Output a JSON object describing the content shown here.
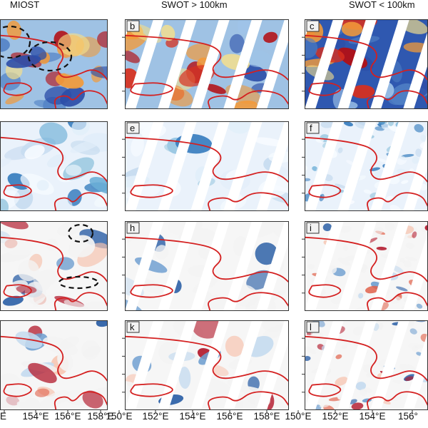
{
  "figure": {
    "column_titles": [
      "MIOST",
      "SWOT > 100km",
      "SWOT < 100km"
    ],
    "x_tick_labels": [
      [
        "E",
        "154°E",
        "156°E",
        "158°E"
      ],
      [
        "150°E",
        "152°E",
        "154°E",
        "156°E",
        "158°E"
      ],
      [
        "150°E",
        "152°E",
        "154°E",
        "156°"
      ]
    ],
    "panel_letters": [
      [
        "",
        "b",
        "c"
      ],
      [
        "",
        "e",
        "f"
      ],
      [
        "",
        "h",
        "i"
      ],
      [
        "",
        "k",
        "l"
      ]
    ],
    "colors": {
      "contour": "#d42020",
      "dashed_ellipse": "#111111",
      "warm": "#b2182b",
      "cool": "#2166ac",
      "neutral": "#f7f7f7"
    },
    "rows": [
      {
        "style": "intensity",
        "cells": [
          "strong",
          "strong",
          "strong"
        ]
      },
      {
        "style": "blue-only",
        "cells": [
          "weak",
          "weak",
          "noisy"
        ]
      },
      {
        "style": "diverging",
        "cells": [
          "smooth",
          "smooth",
          "noisy"
        ]
      },
      {
        "style": "diverging",
        "cells": [
          "smooth",
          "smooth",
          "noisy"
        ]
      }
    ]
  }
}
